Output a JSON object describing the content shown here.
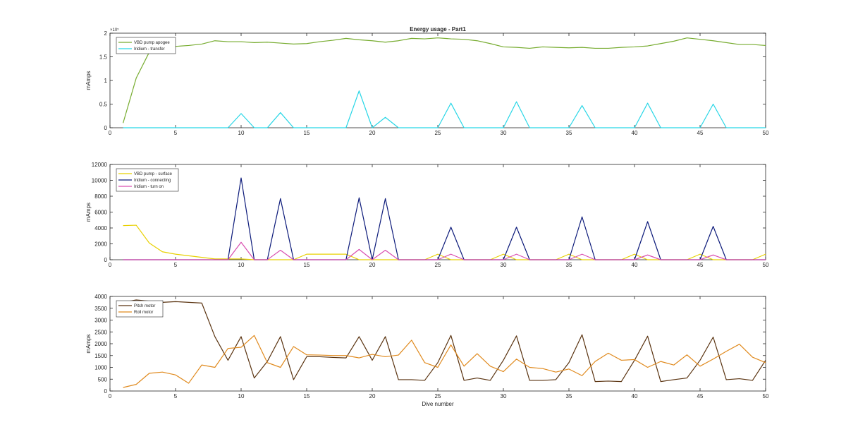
{
  "chart_data": [
    {
      "type": "line",
      "title": "Energy usage - Part1",
      "ylabel": "mAmps",
      "xlabel": "",
      "xlim": [
        0,
        50
      ],
      "ylim": [
        0,
        200000
      ],
      "xticks": [
        0,
        5,
        10,
        15,
        20,
        25,
        30,
        35,
        40,
        45,
        50
      ],
      "yticks": [
        0,
        50000,
        100000,
        150000,
        200000
      ],
      "ytick_labels": [
        "0",
        "0.5",
        "1",
        "1.5",
        "2"
      ],
      "y_exponent_label": "×10⁵",
      "legend_position": "top-left",
      "grid": false,
      "x": [
        1,
        2,
        3,
        4,
        5,
        6,
        7,
        8,
        9,
        10,
        11,
        12,
        13,
        14,
        15,
        16,
        17,
        18,
        19,
        20,
        21,
        22,
        23,
        24,
        25,
        26,
        27,
        28,
        29,
        30,
        31,
        32,
        33,
        34,
        35,
        36,
        37,
        38,
        39,
        40,
        41,
        42,
        43,
        44,
        45,
        46,
        47,
        48,
        49,
        50
      ],
      "series": [
        {
          "name": "VBD pump apogee",
          "color": "#77ac30",
          "values": [
            10000,
            105000,
            160000,
            170000,
            172000,
            174000,
            177000,
            184000,
            182000,
            182000,
            180000,
            181000,
            179000,
            177000,
            178000,
            182000,
            185000,
            189000,
            186000,
            184000,
            181000,
            184000,
            189000,
            188000,
            190000,
            188000,
            187000,
            184000,
            178000,
            171000,
            170000,
            168000,
            171000,
            170000,
            169000,
            170000,
            168000,
            168000,
            170000,
            171000,
            173000,
            178000,
            183000,
            190000,
            187000,
            184000,
            180000,
            176000,
            176000,
            174000
          ]
        },
        {
          "name": "Iridium - transfer",
          "color": "#27d6e6",
          "values": [
            0,
            0,
            0,
            0,
            0,
            0,
            0,
            0,
            0,
            30000,
            0,
            0,
            32000,
            0,
            0,
            0,
            0,
            0,
            78000,
            0,
            22000,
            0,
            0,
            0,
            0,
            52000,
            0,
            0,
            0,
            0,
            55000,
            0,
            0,
            0,
            0,
            47000,
            0,
            0,
            0,
            0,
            52000,
            0,
            0,
            0,
            0,
            50000,
            0,
            0,
            0,
            0
          ]
        }
      ]
    },
    {
      "type": "line",
      "title": "",
      "ylabel": "mAmps",
      "xlabel": "",
      "xlim": [
        0,
        50
      ],
      "ylim": [
        0,
        12000
      ],
      "xticks": [
        0,
        5,
        10,
        15,
        20,
        25,
        30,
        35,
        40,
        45,
        50
      ],
      "yticks": [
        0,
        2000,
        4000,
        6000,
        8000,
        10000,
        12000
      ],
      "legend_position": "top-left",
      "grid": false,
      "x": [
        1,
        2,
        3,
        4,
        5,
        6,
        7,
        8,
        9,
        10,
        11,
        12,
        13,
        14,
        15,
        16,
        17,
        18,
        19,
        20,
        21,
        22,
        23,
        24,
        25,
        26,
        27,
        28,
        29,
        30,
        31,
        32,
        33,
        34,
        35,
        36,
        37,
        38,
        39,
        40,
        41,
        42,
        43,
        44,
        45,
        46,
        47,
        48,
        49,
        50
      ],
      "series": [
        {
          "name": "VBD pump - surface",
          "color": "#e8d000",
          "values": [
            4300,
            4350,
            2100,
            1000,
            700,
            500,
            300,
            100,
            100,
            100,
            0,
            0,
            0,
            0,
            700,
            700,
            700,
            700,
            0,
            0,
            0,
            0,
            0,
            0,
            700,
            0,
            0,
            0,
            0,
            700,
            0,
            0,
            0,
            0,
            700,
            0,
            0,
            0,
            0,
            700,
            0,
            0,
            0,
            0,
            700,
            0,
            0,
            0,
            0,
            700
          ]
        },
        {
          "name": "Iridium - connecting",
          "color": "#0c1a7a",
          "values": [
            0,
            0,
            0,
            0,
            0,
            0,
            0,
            0,
            0,
            10300,
            0,
            0,
            7700,
            0,
            0,
            0,
            0,
            0,
            7800,
            0,
            7700,
            0,
            0,
            0,
            0,
            4100,
            0,
            0,
            0,
            0,
            4100,
            0,
            0,
            0,
            0,
            5400,
            0,
            0,
            0,
            0,
            4800,
            0,
            0,
            0,
            0,
            4200,
            0,
            0,
            0,
            0
          ]
        },
        {
          "name": "Iridium - turn on",
          "color": "#d94fb0",
          "values": [
            0,
            0,
            0,
            0,
            0,
            0,
            0,
            0,
            0,
            2200,
            0,
            0,
            1200,
            0,
            0,
            0,
            0,
            0,
            1300,
            0,
            1200,
            0,
            0,
            0,
            0,
            700,
            0,
            0,
            0,
            0,
            700,
            0,
            0,
            0,
            0,
            700,
            0,
            0,
            0,
            0,
            600,
            0,
            0,
            0,
            0,
            600,
            0,
            0,
            0,
            0
          ]
        }
      ]
    },
    {
      "type": "line",
      "title": "",
      "ylabel": "mAmps",
      "xlabel": "Dive number",
      "xlim": [
        0,
        50
      ],
      "ylim": [
        0,
        4000
      ],
      "xticks": [
        0,
        5,
        10,
        15,
        20,
        25,
        30,
        35,
        40,
        45,
        50
      ],
      "yticks": [
        0,
        500,
        1000,
        1500,
        2000,
        2500,
        3000,
        3500,
        4000
      ],
      "legend_position": "top-left",
      "grid": false,
      "x": [
        1,
        2,
        3,
        4,
        5,
        6,
        7,
        8,
        9,
        10,
        11,
        12,
        13,
        14,
        15,
        16,
        17,
        18,
        19,
        20,
        21,
        22,
        23,
        24,
        25,
        26,
        27,
        28,
        29,
        30,
        31,
        32,
        33,
        34,
        35,
        36,
        37,
        38,
        39,
        40,
        41,
        42,
        43,
        44,
        45,
        46,
        47,
        48,
        49,
        50
      ],
      "series": [
        {
          "name": "Pitch motor",
          "color": "#5a3310",
          "values": [
            3750,
            3850,
            3800,
            3750,
            3780,
            3750,
            3720,
            2300,
            1300,
            2300,
            550,
            1250,
            2300,
            480,
            1450,
            1450,
            1420,
            1400,
            2300,
            1300,
            2300,
            480,
            480,
            450,
            1200,
            2350,
            450,
            550,
            450,
            1300,
            2330,
            450,
            450,
            480,
            1200,
            2380,
            400,
            420,
            400,
            1300,
            2320,
            400,
            480,
            550,
            1300,
            2280,
            480,
            520,
            450,
            1300
          ]
        },
        {
          "name": "Roll motor",
          "color": "#e08a1e",
          "values": [
            150,
            280,
            750,
            800,
            680,
            330,
            1100,
            1000,
            1800,
            1850,
            2350,
            1200,
            1000,
            1880,
            1530,
            1520,
            1500,
            1500,
            1400,
            1550,
            1450,
            1520,
            2150,
            1200,
            1000,
            1950,
            1050,
            1580,
            1050,
            820,
            1350,
            1000,
            950,
            800,
            930,
            650,
            1250,
            1600,
            1300,
            1330,
            1000,
            1250,
            1100,
            1530,
            1050,
            1350,
            1680,
            1980,
            1430,
            1200
          ]
        }
      ]
    }
  ]
}
